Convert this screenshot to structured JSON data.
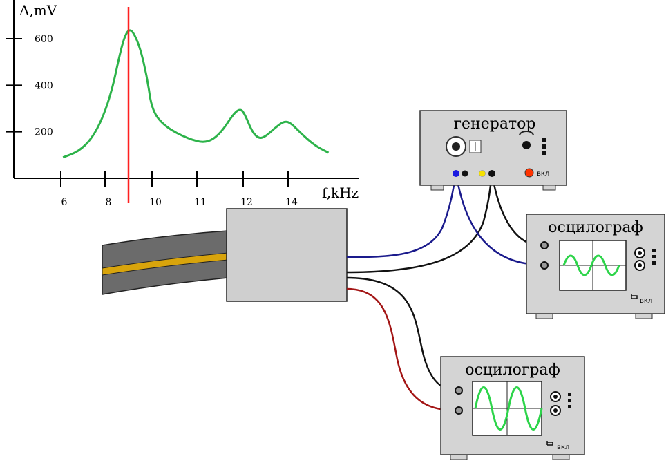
{
  "chart_data": {
    "type": "line",
    "ylabel": "A,mV",
    "xlabel": "f,kHz",
    "y_ticks": [
      "200",
      "400",
      "600"
    ],
    "x_ticks": [
      {
        "value": 6,
        "label": "6"
      },
      {
        "value": 8,
        "label": "8"
      },
      {
        "value": 10,
        "label": "10"
      },
      {
        "value": 11,
        "label": "11"
      },
      {
        "value": 12,
        "label": "12"
      },
      {
        "value": 14,
        "label": "14"
      }
    ],
    "series": [
      {
        "color": "#2db34a",
        "points": [
          [
            6.1,
            90
          ],
          [
            6.8,
            115
          ],
          [
            7.4,
            170
          ],
          [
            7.9,
            260
          ],
          [
            8.3,
            380
          ],
          [
            8.6,
            520
          ],
          [
            8.8,
            600
          ],
          [
            9.0,
            640
          ],
          [
            9.2,
            630
          ],
          [
            9.5,
            560
          ],
          [
            9.8,
            430
          ],
          [
            10.0,
            290
          ],
          [
            10.3,
            220
          ],
          [
            10.8,
            170
          ],
          [
            11.2,
            150
          ],
          [
            11.5,
            190
          ],
          [
            11.8,
            280
          ],
          [
            11.95,
            300
          ],
          [
            12.1,
            270
          ],
          [
            12.4,
            200
          ],
          [
            12.7,
            170
          ],
          [
            13.0,
            180
          ],
          [
            13.4,
            215
          ],
          [
            13.8,
            245
          ],
          [
            14.1,
            240
          ],
          [
            14.6,
            190
          ],
          [
            15.2,
            140
          ],
          [
            15.8,
            110
          ]
        ]
      }
    ],
    "marker": {
      "x": 9.0,
      "color": "#ff2020"
    }
  },
  "devices": {
    "generator": {
      "title": "генератор",
      "switch_label": "вкл",
      "switch_color": "#ff3300"
    },
    "oscilloscope_1": {
      "title": "осцилограф",
      "switch_label": "вкл"
    },
    "oscilloscope_2": {
      "title": "осцилограф",
      "switch_label": "вкл"
    }
  },
  "colors": {
    "device_body": "#d4d4d4",
    "cable_blue": "#1a1a8c",
    "cable_black": "#111111",
    "cable_red": "#a31515",
    "trace_green": "#2dd44a",
    "pipe_core": "#d8a40c",
    "pipe_shell": "#6b6b6b"
  }
}
